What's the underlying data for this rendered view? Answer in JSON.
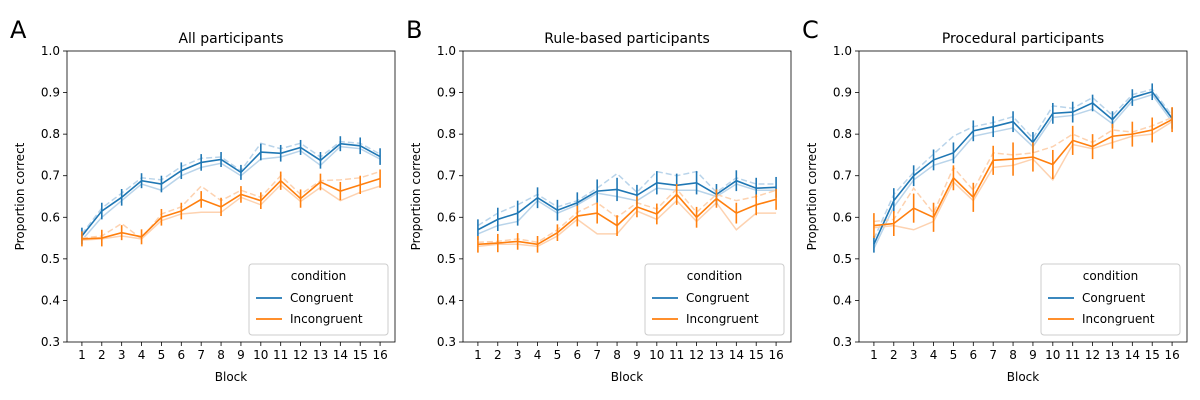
{
  "colors": {
    "congruent": "#1f77b4",
    "incongruent": "#ff7f0e",
    "congruent_light": "#b9d4ea",
    "incongruent_light": "#fdd2b0"
  },
  "chart_data": [
    {
      "type": "line",
      "letter": "A",
      "title": "All participants",
      "xlabel": "Block",
      "ylabel": "Proportion correct",
      "ylim": [
        0.3,
        1.0
      ],
      "yticks": [
        "0.3",
        "0.4",
        "0.5",
        "0.6",
        "0.7",
        "0.8",
        "0.9",
        "1.0"
      ],
      "x": [
        1,
        2,
        3,
        4,
        5,
        6,
        7,
        8,
        9,
        10,
        11,
        12,
        13,
        14,
        15,
        16
      ],
      "legend_title": "condition",
      "legend_position": "lower-right",
      "series": [
        {
          "name": "Congruent",
          "values": [
            0.555,
            0.615,
            0.648,
            0.688,
            0.68,
            0.712,
            0.732,
            0.739,
            0.708,
            0.757,
            0.754,
            0.768,
            0.737,
            0.777,
            0.772,
            0.746
          ],
          "err": [
            0.02,
            0.02,
            0.02,
            0.018,
            0.02,
            0.02,
            0.02,
            0.018,
            0.018,
            0.02,
            0.02,
            0.018,
            0.02,
            0.018,
            0.02,
            0.02
          ],
          "faint_1": [
            0.545,
            0.6,
            0.64,
            0.68,
            0.665,
            0.7,
            0.72,
            0.73,
            0.7,
            0.74,
            0.745,
            0.76,
            0.725,
            0.77,
            0.765,
            0.74
          ],
          "faint_2": [
            0.56,
            0.622,
            0.658,
            0.695,
            0.69,
            0.722,
            0.742,
            0.745,
            0.712,
            0.778,
            0.765,
            0.778,
            0.745,
            0.782,
            0.778,
            0.752
          ]
        },
        {
          "name": "Incongruent",
          "values": [
            0.548,
            0.55,
            0.563,
            0.553,
            0.6,
            0.615,
            0.643,
            0.625,
            0.655,
            0.64,
            0.688,
            0.645,
            0.685,
            0.663,
            0.678,
            0.693
          ],
          "err": [
            0.018,
            0.02,
            0.018,
            0.018,
            0.02,
            0.02,
            0.02,
            0.022,
            0.02,
            0.02,
            0.022,
            0.022,
            0.02,
            0.022,
            0.022,
            0.022
          ],
          "faint_1": [
            0.545,
            0.548,
            0.555,
            0.548,
            0.592,
            0.608,
            0.612,
            0.612,
            0.648,
            0.63,
            0.678,
            0.638,
            0.672,
            0.64,
            0.66,
            0.675
          ],
          "faint_2": [
            0.55,
            0.555,
            0.585,
            0.548,
            0.608,
            0.625,
            0.675,
            0.64,
            0.665,
            0.648,
            0.7,
            0.655,
            0.688,
            0.69,
            0.695,
            0.71
          ]
        }
      ]
    },
    {
      "type": "line",
      "letter": "B",
      "title": "Rule-based participants",
      "xlabel": "Block",
      "ylabel": "Proportion correct",
      "ylim": [
        0.3,
        1.0
      ],
      "yticks": [
        "0.3",
        "0.4",
        "0.5",
        "0.6",
        "0.7",
        "0.8",
        "0.9",
        "1.0"
      ],
      "x": [
        1,
        2,
        3,
        4,
        5,
        6,
        7,
        8,
        9,
        10,
        11,
        12,
        13,
        14,
        15,
        16
      ],
      "legend_title": "condition",
      "legend_position": "lower-right",
      "series": [
        {
          "name": "Congruent",
          "values": [
            0.57,
            0.595,
            0.61,
            0.647,
            0.617,
            0.635,
            0.663,
            0.667,
            0.653,
            0.683,
            0.677,
            0.683,
            0.655,
            0.688,
            0.67,
            0.672
          ],
          "err": [
            0.025,
            0.028,
            0.03,
            0.025,
            0.025,
            0.025,
            0.028,
            0.028,
            0.025,
            0.028,
            0.028,
            0.028,
            0.025,
            0.025,
            0.025,
            0.025
          ],
          "faint_1": [
            0.56,
            0.58,
            0.59,
            0.64,
            0.61,
            0.63,
            0.658,
            0.65,
            0.64,
            0.67,
            0.665,
            0.665,
            0.65,
            0.68,
            0.665,
            0.665
          ],
          "faint_2": [
            0.58,
            0.61,
            0.63,
            0.655,
            0.625,
            0.64,
            0.67,
            0.705,
            0.66,
            0.71,
            0.7,
            0.71,
            0.66,
            0.695,
            0.68,
            0.68
          ]
        },
        {
          "name": "Incongruent",
          "values": [
            0.535,
            0.538,
            0.542,
            0.535,
            0.563,
            0.603,
            0.61,
            0.58,
            0.625,
            0.608,
            0.655,
            0.6,
            0.645,
            0.61,
            0.63,
            0.643
          ],
          "err": [
            0.02,
            0.022,
            0.02,
            0.02,
            0.02,
            0.025,
            0.025,
            0.025,
            0.025,
            0.025,
            0.025,
            0.025,
            0.022,
            0.025,
            0.025,
            0.025
          ],
          "faint_1": [
            0.53,
            0.535,
            0.535,
            0.53,
            0.555,
            0.595,
            0.56,
            0.56,
            0.615,
            0.595,
            0.64,
            0.59,
            0.635,
            0.57,
            0.61,
            0.61
          ],
          "faint_2": [
            0.54,
            0.542,
            0.548,
            0.54,
            0.57,
            0.612,
            0.635,
            0.6,
            0.635,
            0.62,
            0.668,
            0.612,
            0.655,
            0.64,
            0.65,
            0.665
          ]
        }
      ]
    },
    {
      "type": "line",
      "letter": "C",
      "title": "Procedural participants",
      "xlabel": "Block",
      "ylabel": "Proportion correct",
      "ylim": [
        0.3,
        1.0
      ],
      "yticks": [
        "0.3",
        "0.4",
        "0.5",
        "0.6",
        "0.7",
        "0.8",
        "0.9",
        "1.0"
      ],
      "x": [
        1,
        2,
        3,
        4,
        5,
        6,
        7,
        8,
        9,
        10,
        11,
        12,
        13,
        14,
        15,
        16
      ],
      "legend_title": "condition",
      "legend_position": "lower-right",
      "series": [
        {
          "name": "Congruent",
          "values": [
            0.535,
            0.64,
            0.7,
            0.738,
            0.755,
            0.808,
            0.818,
            0.83,
            0.78,
            0.85,
            0.853,
            0.875,
            0.835,
            0.888,
            0.902,
            0.838
          ],
          "err": [
            0.02,
            0.03,
            0.025,
            0.025,
            0.025,
            0.025,
            0.025,
            0.025,
            0.025,
            0.025,
            0.025,
            0.02,
            0.02,
            0.02,
            0.02,
            0.025
          ],
          "faint_1": [
            0.525,
            0.625,
            0.69,
            0.725,
            0.74,
            0.795,
            0.805,
            0.815,
            0.77,
            0.84,
            0.845,
            0.86,
            0.825,
            0.88,
            0.895,
            0.83
          ],
          "faint_2": [
            0.548,
            0.655,
            0.708,
            0.752,
            0.795,
            0.818,
            0.828,
            0.842,
            0.79,
            0.868,
            0.862,
            0.888,
            0.845,
            0.895,
            0.908,
            0.845
          ]
        },
        {
          "name": "Incongruent",
          "values": [
            0.58,
            0.585,
            0.622,
            0.6,
            0.695,
            0.648,
            0.737,
            0.74,
            0.745,
            0.727,
            0.785,
            0.77,
            0.795,
            0.8,
            0.81,
            0.835
          ],
          "err": [
            0.03,
            0.03,
            0.035,
            0.035,
            0.03,
            0.035,
            0.035,
            0.04,
            0.035,
            0.035,
            0.035,
            0.03,
            0.03,
            0.03,
            0.03,
            0.03
          ],
          "faint_1": [
            0.575,
            0.58,
            0.57,
            0.59,
            0.685,
            0.64,
            0.72,
            0.725,
            0.74,
            0.69,
            0.775,
            0.765,
            0.78,
            0.795,
            0.8,
            0.83
          ],
          "faint_2": [
            0.59,
            0.595,
            0.67,
            0.61,
            0.72,
            0.665,
            0.755,
            0.75,
            0.755,
            0.77,
            0.8,
            0.78,
            0.81,
            0.805,
            0.82,
            0.84
          ]
        }
      ]
    }
  ]
}
